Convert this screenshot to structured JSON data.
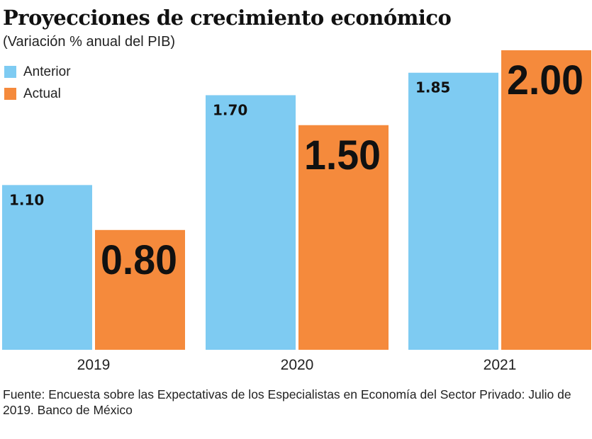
{
  "chart_data": {
    "type": "bar",
    "title": "Proyecciones de crecimiento económico",
    "subtitle": "(Variación % anual del PIB)",
    "categories": [
      "2019",
      "2020",
      "2021"
    ],
    "series": [
      {
        "name": "Anterior",
        "color": "#7ecbf2",
        "values": [
          1.1,
          1.7,
          1.85
        ],
        "labels": [
          "1.10",
          "1.70",
          "1.85"
        ]
      },
      {
        "name": "Actual",
        "color": "#f58a3c",
        "values": [
          0.8,
          1.5,
          2.0
        ],
        "labels": [
          "0.80",
          "1.50",
          "2.00"
        ]
      }
    ],
    "ylim": [
      0,
      2.0
    ],
    "grid": false,
    "legend": "top-left",
    "source": "Fuente: Encuesta sobre las Expectativas de los Especialistas en Economía del Sector Privado: Julio de 2019. Banco de México"
  }
}
